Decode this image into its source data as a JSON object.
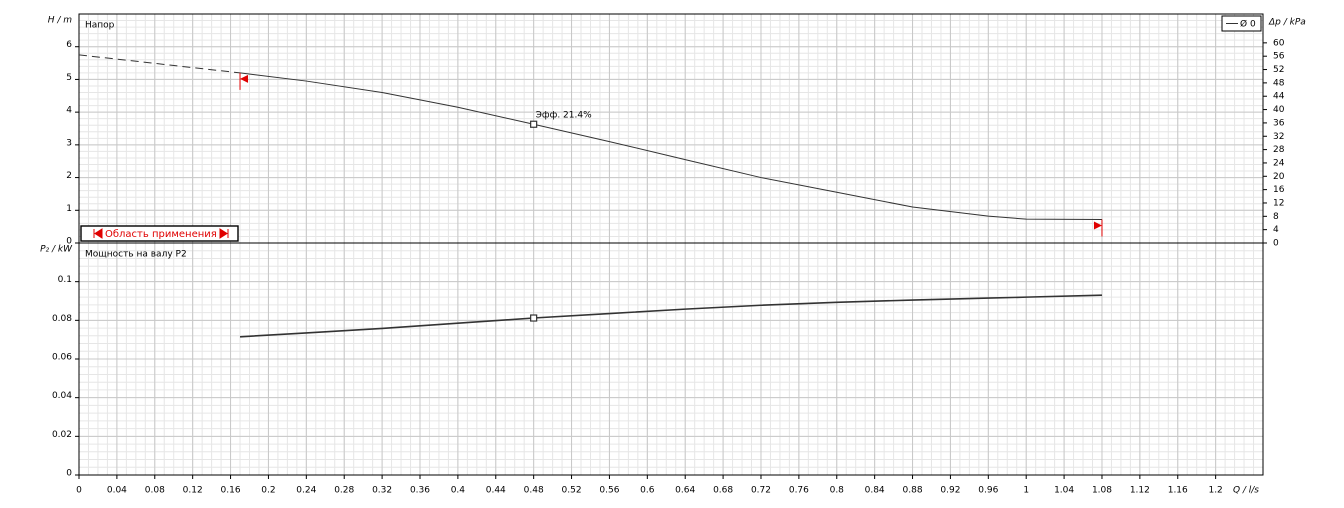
{
  "chart_data": [
    {
      "type": "line",
      "title": "Напор",
      "ylabel": "H / m",
      "y2label": "Δp / kPa",
      "xlim": [
        0,
        1.25
      ],
      "ylim": [
        0,
        7
      ],
      "yticks": [
        0,
        1,
        2,
        3,
        4,
        5,
        6
      ],
      "y2lim": [
        0,
        68.65
      ],
      "y2ticks": [
        0,
        4,
        8,
        12,
        16,
        20,
        24,
        28,
        32,
        36,
        40,
        44,
        48,
        52,
        56,
        60
      ],
      "grid": true,
      "legend": "upper right",
      "dash_x_max": 0.17,
      "series": [
        {
          "name": "Ø 0",
          "color": "#333333",
          "x": [
            0,
            0.17,
            0.24,
            0.32,
            0.4,
            0.48,
            0.56,
            0.64,
            0.72,
            0.8,
            0.88,
            0.96,
            1.0,
            1.08
          ],
          "values": [
            5.75,
            5.2,
            4.95,
            4.6,
            4.15,
            3.63,
            3.1,
            2.55,
            2.0,
            1.55,
            1.1,
            0.82,
            0.73,
            0.72
          ]
        }
      ],
      "marker": {
        "x": 0.48,
        "y": 3.63,
        "label": "Эфф. 21.4%"
      },
      "range": {
        "label": "Область применения",
        "x": [
          0.17,
          1.08
        ]
      }
    },
    {
      "type": "line",
      "title": "Мощность на валу P2",
      "ylabel": "P₂ / kW",
      "xlabel": "Q / l/s",
      "xlim": [
        0,
        1.25
      ],
      "ylim": [
        0,
        0.12
      ],
      "yticks": [
        0,
        0.02,
        0.04,
        0.06,
        0.08,
        0.1
      ],
      "xticks": [
        0,
        0.04,
        0.08,
        0.12,
        0.16,
        0.2,
        0.24,
        0.28,
        0.32,
        0.36,
        0.4,
        0.44,
        0.48,
        0.52,
        0.56,
        0.6,
        0.64,
        0.68,
        0.72,
        0.76,
        0.8,
        0.84,
        0.88,
        0.92,
        0.96,
        1,
        1.04,
        1.08,
        1.12,
        1.16,
        1.2
      ],
      "grid": true,
      "series": [
        {
          "name": "P2",
          "color": "#333333",
          "x": [
            0.17,
            0.24,
            0.32,
            0.4,
            0.48,
            0.56,
            0.64,
            0.72,
            0.8,
            0.88,
            0.96,
            1.0,
            1.08
          ],
          "values": [
            0.0715,
            0.0735,
            0.0758,
            0.0785,
            0.0812,
            0.0835,
            0.0858,
            0.0878,
            0.0893,
            0.0905,
            0.0915,
            0.092,
            0.093
          ]
        }
      ],
      "marker": {
        "x": 0.48,
        "y": 0.0812
      }
    }
  ]
}
